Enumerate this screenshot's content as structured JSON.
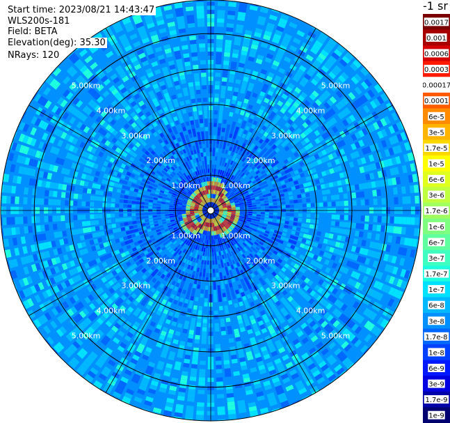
{
  "header": {
    "start_time": "Start time: 2023/08/21 14:43:47",
    "instrument": "WLS200s-181",
    "field": "Field: BETA",
    "elevation": "Elevation(deg): 35.30",
    "nrays": "NRays: 120"
  },
  "colorbar": {
    "unit_label": "-1 sr",
    "labels": [
      "0.0017",
      "0.001",
      "0.0006",
      "0.0003",
      "0.00017",
      "0.0001",
      "6e-5",
      "3e-5",
      "1.7e-5",
      "1e-5",
      "6e-6",
      "3e-6",
      "1.7e-6",
      "1e-6",
      "6e-7",
      "3e-7",
      "1.7e-7",
      "1e-7",
      "6e-8",
      "3e-8",
      "1.7e-8",
      "1e-8",
      "6e-9",
      "3e-9",
      "1.7e-9",
      "1e-9"
    ],
    "colors": [
      "#7a0000",
      "#a80000",
      "#d40000",
      "#ff1a00",
      "#ffffff",
      "#ff5a00",
      "#ff8c00",
      "#ffb400",
      "#ffd800",
      "#ffff00",
      "#e0ff1e",
      "#c0ff3f",
      "#9fff5f",
      "#7fff7f",
      "#5fff9f",
      "#3fffc0",
      "#1effe0",
      "#00e0ff",
      "#00b8ff",
      "#0090ff",
      "#0068ff",
      "#0040ff",
      "#0018ff",
      "#0000e0",
      "#0000a8",
      "#000070"
    ]
  },
  "range_rings": {
    "labels": [
      "1.00km",
      "2.00km",
      "3.00km",
      "4.00km",
      "5.00km"
    ]
  },
  "chart_data": {
    "type": "heatmap",
    "plot_kind": "PPI scan",
    "n_rays": 120,
    "ring_ranges_km": [
      1,
      2,
      3,
      4,
      5
    ],
    "max_range_km": 5.95,
    "color_scale": "log",
    "value_range": [
      1e-09,
      0.0017
    ],
    "near_field_peak": 0.0003,
    "background_typical": 1e-07
  }
}
